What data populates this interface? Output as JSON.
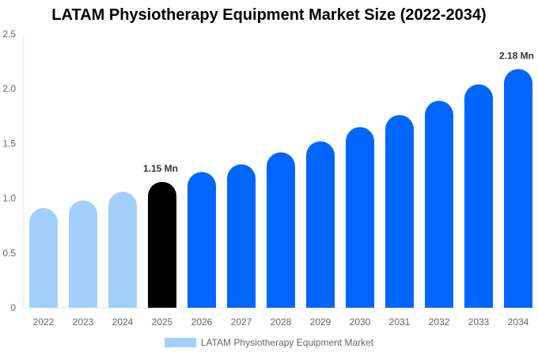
{
  "chart_data": {
    "type": "bar",
    "title": "LATAM Physiotherapy Equipment Market Size (2022-2034)",
    "categories": [
      "2022",
      "2023",
      "2024",
      "2025",
      "2026",
      "2027",
      "2028",
      "2029",
      "2030",
      "2031",
      "2032",
      "2033",
      "2034"
    ],
    "series": [
      {
        "name": "LATAM Physiotherapy Equipment Market",
        "values": [
          0.91,
          0.98,
          1.06,
          1.15,
          1.24,
          1.31,
          1.42,
          1.52,
          1.65,
          1.76,
          1.89,
          2.04,
          2.18
        ]
      }
    ],
    "ylim": [
      0,
      2.5
    ],
    "yticks": [
      "0",
      "0.5",
      "1.0",
      "1.5",
      "2.0",
      "2.5"
    ],
    "annotations": [
      {
        "category": "2025",
        "text": "1.15 Mn"
      },
      {
        "category": "2034",
        "text": "2.18 Mn"
      }
    ],
    "colors": {
      "historical": "#a3cffc",
      "current": "#000000",
      "forecast": "#0066ff"
    },
    "grid": false,
    "legend_position": "bottom"
  }
}
